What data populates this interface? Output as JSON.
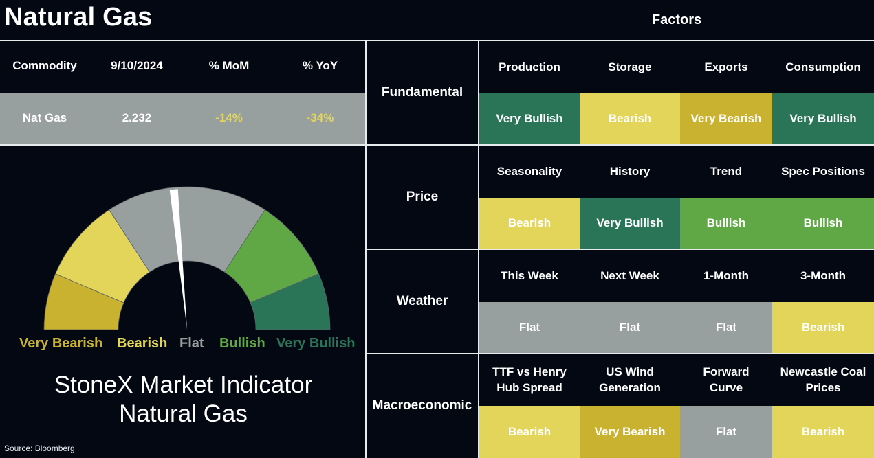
{
  "title": "Natural Gas",
  "factors_title": "Factors",
  "colors": {
    "very_bullish": "#2a7557",
    "bullish": "#5fa845",
    "flat": "#98a09f",
    "bearish": "#e2d55a",
    "very_bearish": "#c9b22f",
    "background": "#040812",
    "divider": "#e8ebee"
  },
  "summary": {
    "headers": [
      "Commodity",
      "9/10/2024",
      "% MoM",
      "% YoY"
    ],
    "row": {
      "commodity": "Nat Gas",
      "price": "2.232",
      "mom": "-14%",
      "yoy": "-34%"
    }
  },
  "gauge": {
    "labels": {
      "very_bearish": "Very Bearish",
      "bearish": "Bearish",
      "flat": "Flat",
      "bullish": "Bullish",
      "very_bullish": "Very Bullish"
    },
    "needle_position": 0.47,
    "indicator_title_line1": "StoneX Market Indicator",
    "indicator_title_line2": "Natural Gas"
  },
  "source": "Source: Bloomberg",
  "sections": [
    {
      "category": "Fundamental",
      "factors": [
        {
          "name": "Production",
          "signal": "Very Bullish",
          "level": "very_bullish"
        },
        {
          "name": "Storage",
          "signal": "Bearish",
          "level": "bearish"
        },
        {
          "name": "Exports",
          "signal": "Very Bearish",
          "level": "very_bearish"
        },
        {
          "name": "Consumption",
          "signal": "Very Bullish",
          "level": "very_bullish"
        }
      ]
    },
    {
      "category": "Price",
      "factors": [
        {
          "name": "Seasonality",
          "signal": "Bearish",
          "level": "bearish"
        },
        {
          "name": "History",
          "signal": "Very Bullish",
          "level": "very_bullish"
        },
        {
          "name": "Trend",
          "signal": "Bullish",
          "level": "bullish"
        },
        {
          "name": "Spec Positions",
          "signal": "Bullish",
          "level": "bullish"
        }
      ]
    },
    {
      "category": "Weather",
      "factors": [
        {
          "name": "This Week",
          "signal": "Flat",
          "level": "flat"
        },
        {
          "name": "Next Week",
          "signal": "Flat",
          "level": "flat"
        },
        {
          "name": "1-Month",
          "signal": "Flat",
          "level": "flat"
        },
        {
          "name": "3-Month",
          "signal": "Bearish",
          "level": "bearish"
        }
      ]
    },
    {
      "category": "Macroeconomic",
      "factors": [
        {
          "name": "TTF vs Henry Hub Spread",
          "signal": "Bearish",
          "level": "bearish"
        },
        {
          "name": "US Wind Generation",
          "signal": "Very Bearish",
          "level": "very_bearish"
        },
        {
          "name": "Forward Curve",
          "signal": "Flat",
          "level": "flat"
        },
        {
          "name": "Newcastle Coal Prices",
          "signal": "Bearish",
          "level": "bearish"
        }
      ]
    }
  ]
}
